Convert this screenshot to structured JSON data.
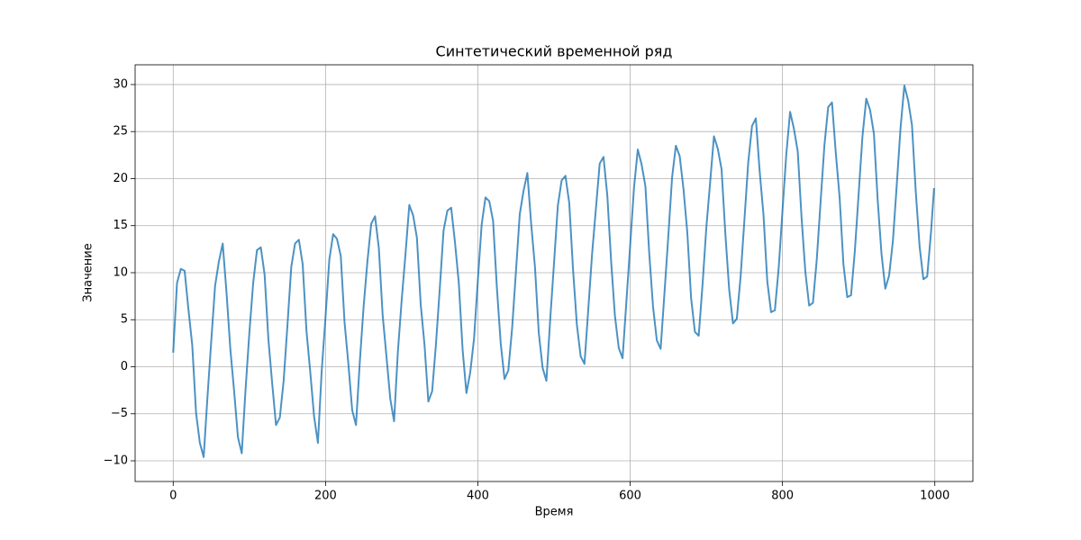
{
  "chart_data": {
    "type": "line",
    "title": "Синтетический временной ряд",
    "xlabel": "Время",
    "ylabel": "Значение",
    "color": "#1f77b4",
    "alpha": 0.8,
    "grid": true,
    "xlim": [
      -50,
      1050
    ],
    "ylim": [
      -12.2,
      32.1
    ],
    "xticks": [
      0,
      200,
      400,
      600,
      800,
      1000
    ],
    "yticks": [
      {
        "value": -10,
        "label": "−10"
      },
      {
        "value": -5,
        "label": "−5"
      },
      0,
      5,
      10,
      15,
      20,
      25,
      30
    ],
    "x": [
      0,
      5,
      10,
      15,
      20,
      25,
      30,
      35,
      40,
      45,
      50,
      55,
      60,
      65,
      70,
      75,
      80,
      85,
      90,
      95,
      100,
      105,
      110,
      115,
      120,
      125,
      130,
      135,
      140,
      145,
      150,
      155,
      160,
      165,
      170,
      175,
      180,
      185,
      190,
      195,
      200,
      205,
      210,
      215,
      220,
      225,
      230,
      235,
      240,
      245,
      250,
      255,
      260,
      265,
      270,
      275,
      280,
      285,
      290,
      295,
      300,
      305,
      310,
      315,
      320,
      325,
      330,
      335,
      340,
      345,
      350,
      355,
      360,
      365,
      370,
      375,
      380,
      385,
      390,
      395,
      400,
      405,
      410,
      415,
      420,
      425,
      430,
      435,
      440,
      445,
      450,
      455,
      460,
      465,
      470,
      475,
      480,
      485,
      490,
      495,
      500,
      505,
      510,
      515,
      520,
      525,
      530,
      535,
      540,
      545,
      550,
      555,
      560,
      565,
      570,
      575,
      580,
      585,
      590,
      595,
      600,
      605,
      610,
      615,
      620,
      625,
      630,
      635,
      640,
      645,
      650,
      655,
      660,
      665,
      670,
      675,
      680,
      685,
      690,
      695,
      700,
      705,
      710,
      715,
      720,
      725,
      730,
      735,
      740,
      745,
      750,
      755,
      760,
      765,
      770,
      775,
      780,
      785,
      790,
      795,
      800,
      805,
      810,
      815,
      820,
      825,
      830,
      835,
      840,
      845,
      850,
      855,
      860,
      865,
      870,
      875,
      880,
      885,
      890,
      895,
      900,
      905,
      910,
      915,
      920,
      925,
      930,
      935,
      940,
      945,
      950,
      955,
      960,
      965,
      970,
      975,
      980,
      985,
      990,
      995,
      999
    ],
    "values": [
      1.5,
      8.9,
      10.4,
      10.2,
      6.1,
      2.3,
      -4.9,
      -8.1,
      -9.6,
      -3.2,
      2.8,
      8.6,
      11.2,
      13.1,
      7.9,
      1.9,
      -2.6,
      -7.5,
      -9.2,
      -2.4,
      3.6,
      8.9,
      12.4,
      12.7,
      9.8,
      2.9,
      -1.8,
      -6.2,
      -5.4,
      -1.5,
      4.4,
      10.6,
      13.1,
      13.5,
      10.9,
      3.8,
      -0.6,
      -5.3,
      -8.1,
      -0.4,
      5.3,
      11.4,
      14.1,
      13.6,
      11.8,
      4.7,
      0.3,
      -4.6,
      -6.2,
      0.5,
      6.4,
      11.2,
      15.2,
      16.0,
      12.6,
      5.5,
      1.1,
      -3.4,
      -5.8,
      1.6,
      7.1,
      12.0,
      17.2,
      16.1,
      13.7,
      6.6,
      2.3,
      -3.7,
      -2.6,
      2.4,
      8.3,
      14.5,
      16.6,
      16.9,
      13.2,
      8.9,
      1.8,
      -2.8,
      -0.6,
      3.0,
      9.2,
      15.1,
      18.0,
      17.6,
      15.5,
      8.4,
      2.5,
      -1.3,
      -0.4,
      4.1,
      10.1,
      16.2,
      18.7,
      20.6,
      15.2,
      10.6,
      3.6,
      -0.1,
      -1.5,
      5.0,
      11.0,
      17.1,
      19.8,
      20.3,
      17.4,
      10.3,
      4.5,
      1.1,
      0.3,
      6.1,
      12.0,
      16.8,
      21.6,
      22.3,
      18.2,
      11.2,
      5.4,
      2.0,
      0.9,
      6.9,
      12.9,
      19.0,
      23.1,
      21.5,
      19.2,
      12.1,
      6.4,
      2.8,
      1.9,
      7.8,
      13.8,
      20.1,
      23.5,
      22.4,
      18.9,
      14.3,
      7.3,
      3.7,
      3.3,
      8.7,
      14.8,
      19.6,
      24.5,
      23.2,
      21.0,
      14.1,
      8.2,
      4.6,
      5.1,
      9.6,
      15.6,
      21.7,
      25.6,
      26.4,
      20.8,
      16.2,
      9.1,
      5.8,
      6.0,
      10.5,
      16.6,
      22.6,
      27.1,
      25.3,
      22.9,
      15.9,
      10.1,
      6.5,
      6.8,
      11.4,
      17.5,
      23.5,
      27.6,
      28.1,
      22.7,
      18.0,
      10.9,
      7.4,
      7.6,
      12.3,
      18.4,
      24.5,
      28.5,
      27.3,
      24.8,
      17.7,
      12.0,
      8.3,
      9.7,
      13.4,
      19.3,
      25.4,
      29.9,
      28.3,
      25.7,
      18.6,
      12.8,
      9.3,
      9.6,
      14.3,
      19.0
    ]
  }
}
